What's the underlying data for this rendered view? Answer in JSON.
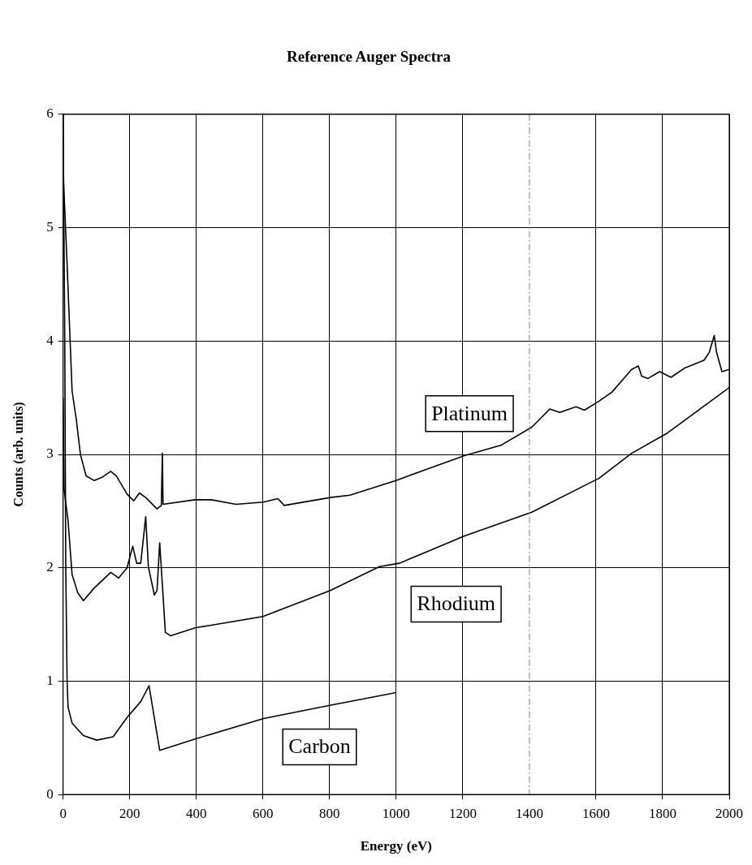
{
  "chart_data": {
    "type": "line",
    "title": "Reference Auger Spectra",
    "xlabel": "Energy (eV)",
    "ylabel": "Counts (arb. units)",
    "xlim": [
      0,
      2000
    ],
    "xticks": [
      0,
      200,
      400,
      600,
      800,
      1000,
      1200,
      1400,
      1600,
      1800,
      2000
    ],
    "ylim": [
      0,
      6
    ],
    "yticks": [
      0,
      1,
      2,
      3,
      4,
      5,
      6
    ],
    "grid": true,
    "legend": false,
    "marker": "none",
    "line_style": "solid",
    "ref_lines": [
      {
        "axis": "x",
        "value": 1400,
        "color": "#808080",
        "line_style": "dashed"
      }
    ],
    "series": [
      {
        "name": "Platinum",
        "color": "#000000",
        "x": [
          0,
          0,
          12,
          27,
          40,
          52,
          69,
          93,
          118,
          143,
          160,
          192,
          212,
          229,
          248,
          282,
          295,
          298,
          300,
          396,
          445,
          519,
          602,
          645,
          664,
          802,
          861,
          999,
          1205,
          1314,
          1407,
          1461,
          1491,
          1540,
          1565,
          1609,
          1648,
          1707,
          1727,
          1737,
          1756,
          1791,
          1825,
          1865,
          1924,
          1940,
          1955,
          1962,
          1978,
          2000
        ],
        "values": [
          6.0,
          5.5,
          4.68,
          3.56,
          3.3,
          3.0,
          2.81,
          2.77,
          2.8,
          2.85,
          2.81,
          2.65,
          2.59,
          2.66,
          2.62,
          2.52,
          2.55,
          3.01,
          2.56,
          2.6,
          2.6,
          2.56,
          2.58,
          2.61,
          2.55,
          2.62,
          2.64,
          2.77,
          2.99,
          3.08,
          3.24,
          3.4,
          3.37,
          3.42,
          3.39,
          3.47,
          3.55,
          3.75,
          3.78,
          3.69,
          3.67,
          3.73,
          3.68,
          3.76,
          3.83,
          3.9,
          4.05,
          3.9,
          3.73,
          3.75
        ]
      },
      {
        "name": "Rhodium",
        "color": "#000000",
        "x": [
          0,
          3,
          15,
          27,
          44,
          61,
          93,
          143,
          167,
          192,
          209,
          221,
          233,
          248,
          256,
          274,
          282,
          290,
          300,
          307,
          323,
          396,
          600,
          802,
          950,
          1009,
          1205,
          1407,
          1609,
          1707,
          1815,
          2000
        ],
        "values": [
          3.5,
          2.69,
          2.41,
          1.94,
          1.78,
          1.71,
          1.82,
          1.96,
          1.91,
          2.0,
          2.19,
          2.04,
          2.04,
          2.45,
          2.01,
          1.76,
          1.8,
          2.22,
          1.76,
          1.43,
          1.4,
          1.47,
          1.57,
          1.8,
          2.01,
          2.04,
          2.28,
          2.49,
          2.79,
          3.01,
          3.19,
          3.59
        ]
      },
      {
        "name": "Carbon",
        "color": "#000000",
        "x": [
          0,
          5,
          8,
          12,
          15,
          27,
          61,
          101,
          150,
          192,
          233,
          258,
          290,
          396,
          602,
          807,
          1000
        ],
        "values": [
          6.0,
          4.0,
          2.0,
          1.0,
          0.77,
          0.63,
          0.52,
          0.48,
          0.51,
          0.68,
          0.82,
          0.96,
          0.39,
          0.49,
          0.67,
          0.79,
          0.9
        ]
      }
    ]
  }
}
